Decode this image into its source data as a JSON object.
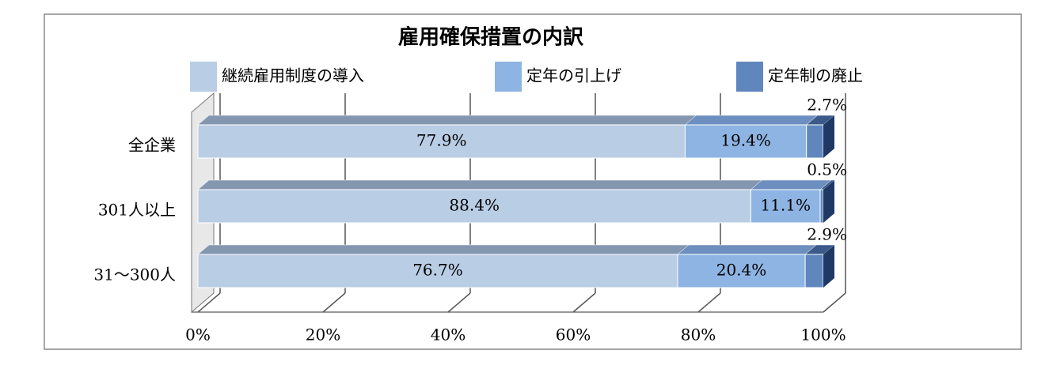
{
  "chart_data": {
    "type": "stacked_bar_3d",
    "orientation": "horizontal",
    "title": "雇用確保措置の内訳",
    "categories": [
      "全企業",
      "301人以上",
      "31～300人"
    ],
    "series": [
      {
        "name": "継続雇用制度の導入",
        "color": "#b9cde5",
        "values": [
          77.9,
          88.4,
          76.7
        ],
        "value_labels": [
          "77.9%",
          "88.4%",
          "76.7%"
        ]
      },
      {
        "name": "定年の引上げ",
        "color": "#8eb4e3",
        "values": [
          19.4,
          11.1,
          20.4
        ],
        "value_labels": [
          "19.4%",
          "11.1%",
          "20.4%"
        ]
      },
      {
        "name": "定年制の廃止",
        "color": "#5f87be",
        "values": [
          2.7,
          0.5,
          2.9
        ],
        "value_labels": [
          "2.7%",
          "0.5%",
          "2.9%"
        ]
      }
    ],
    "xlim": [
      0,
      100
    ],
    "xticks": [
      {
        "value": 0,
        "label": "0%"
      },
      {
        "value": 20,
        "label": "20%"
      },
      {
        "value": 40,
        "label": "40%"
      },
      {
        "value": 60,
        "label": "60%"
      },
      {
        "value": 80,
        "label": "80%"
      },
      {
        "value": 100,
        "label": "100%"
      }
    ],
    "grid": true
  }
}
